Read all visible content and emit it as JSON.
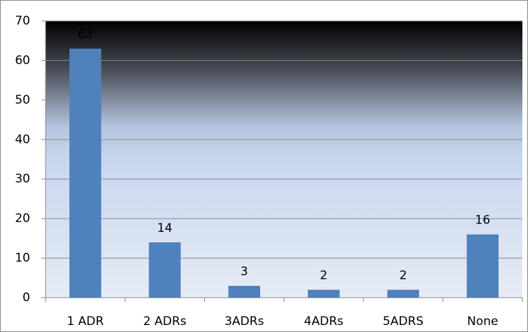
{
  "chart_data": {
    "type": "bar",
    "categories": [
      "1 ADR",
      "2 ADRs",
      "3ADRs",
      "4ADRs",
      "5ADRS",
      "None"
    ],
    "values": [
      63,
      14,
      3,
      2,
      2,
      16
    ],
    "color": "#4f81bd",
    "ylim": [
      0,
      70
    ],
    "yticks": [
      0,
      10,
      20,
      30,
      40,
      50,
      60,
      70
    ],
    "grid": true,
    "data_labels": true
  }
}
